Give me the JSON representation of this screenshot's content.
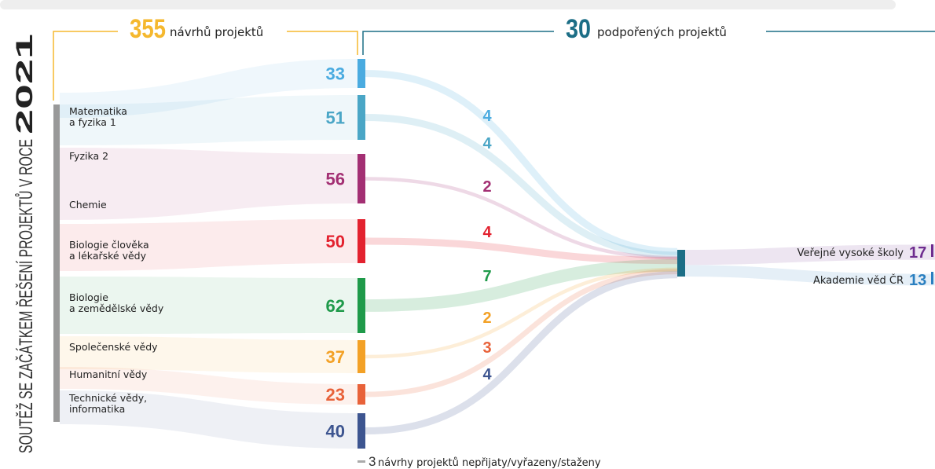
{
  "header": {
    "proposals_count": "355",
    "proposals_label": "návrhů projektů",
    "supported_count": "30",
    "supported_label": "podpořených projektů"
  },
  "side_title": {
    "text": "SOUTĚŽ SE ZAČÁTKEM ŘEŠENÍ PROJEKTŮ V ROCE",
    "year": "2021"
  },
  "fields": [
    [
      "Matematika",
      "a fyzika 1"
    ],
    [
      "Fyzika 2"
    ],
    [
      "Chemie"
    ],
    [
      "Biologie člověka",
      "a lékařské vědy"
    ],
    [
      "Biologie",
      "a zemědělské vědy"
    ],
    [
      "Společenské vědy"
    ],
    [
      "Humanitní vědy"
    ],
    [
      "Technické vědy,",
      "informatika"
    ]
  ],
  "proposals": [
    33,
    51,
    56,
    50,
    62,
    37,
    23,
    40
  ],
  "supported": [
    4,
    4,
    2,
    4,
    7,
    2,
    3,
    4
  ],
  "rejected": {
    "count": "3",
    "label": "návrhy projektů nepřijaty/vyřazeny/staženy"
  },
  "institutions": [
    {
      "name": "Veřejné vysoké školy",
      "count": 17
    },
    {
      "name": "Akademie věd ČR",
      "count": 13
    }
  ]
}
